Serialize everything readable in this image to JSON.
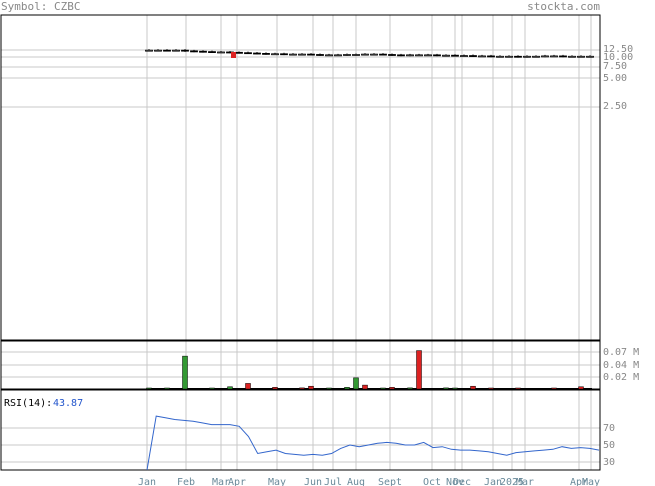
{
  "header": {
    "symbol": "Symbol: CZBC",
    "site": "stockta.com"
  },
  "chart_data": {
    "type": "candlestick",
    "price": {
      "y_ticks": [
        "12.50",
        "10.00",
        "7.50",
        "5.00",
        "2.50"
      ],
      "close": [
        11.9,
        11.9,
        11.8,
        11.9,
        11.7,
        11.6,
        11.5,
        11.4,
        11.4,
        11.3,
        11.2,
        11.1,
        11.0,
        10.9,
        10.9,
        10.8,
        10.8,
        10.8,
        10.7,
        10.6,
        10.6,
        10.6,
        10.7,
        10.7,
        10.8,
        10.8,
        10.7,
        10.6,
        10.5,
        10.6,
        10.6,
        10.6,
        10.5,
        10.5,
        10.4,
        10.4,
        10.3,
        10.3,
        10.2,
        10.2,
        10.2,
        10.1,
        10.2,
        10.2,
        10.3,
        10.3,
        10.2,
        10.2,
        10.2,
        10.2
      ]
    },
    "volume": {
      "y_ticks": [
        "0.07 M",
        "0.04 M",
        "0.02 M"
      ],
      "bars": [
        {
          "i": 0,
          "v": 0.001,
          "c": "green"
        },
        {
          "i": 2,
          "v": 0.001,
          "c": "green"
        },
        {
          "i": 4,
          "v": 0.059,
          "c": "green"
        },
        {
          "i": 7,
          "v": 0.001,
          "c": "green"
        },
        {
          "i": 9,
          "v": 0.004,
          "c": "green"
        },
        {
          "i": 11,
          "v": 0.01,
          "c": "red"
        },
        {
          "i": 14,
          "v": 0.003,
          "c": "red"
        },
        {
          "i": 17,
          "v": 0.002,
          "c": "red"
        },
        {
          "i": 18,
          "v": 0.005,
          "c": "red"
        },
        {
          "i": 20,
          "v": 0.001,
          "c": "green"
        },
        {
          "i": 22,
          "v": 0.003,
          "c": "green"
        },
        {
          "i": 23,
          "v": 0.02,
          "c": "green"
        },
        {
          "i": 24,
          "v": 0.007,
          "c": "red"
        },
        {
          "i": 26,
          "v": 0.001,
          "c": "green"
        },
        {
          "i": 27,
          "v": 0.003,
          "c": "red"
        },
        {
          "i": 29,
          "v": 0.002,
          "c": "green"
        },
        {
          "i": 30,
          "v": 0.069,
          "c": "red"
        },
        {
          "i": 33,
          "v": 0.002,
          "c": "green"
        },
        {
          "i": 34,
          "v": 0.001,
          "c": "green"
        },
        {
          "i": 36,
          "v": 0.005,
          "c": "red"
        },
        {
          "i": 38,
          "v": 0.001,
          "c": "red"
        },
        {
          "i": 41,
          "v": 0.001,
          "c": "red"
        },
        {
          "i": 45,
          "v": 0.001,
          "c": "red"
        },
        {
          "i": 48,
          "v": 0.004,
          "c": "red"
        }
      ]
    },
    "rsi": {
      "label": "RSI(14):",
      "value": "43.87",
      "y_ticks": [
        "70",
        "50",
        "30"
      ],
      "values": [
        0,
        84,
        82,
        80,
        79,
        78,
        76,
        74,
        74,
        74,
        72,
        60,
        40,
        42,
        44,
        40,
        39,
        38,
        39,
        38,
        40,
        46,
        50,
        48,
        50,
        52,
        53,
        52,
        50,
        50,
        53,
        47,
        48,
        45,
        44,
        44,
        43,
        42,
        40,
        38,
        41,
        42,
        43,
        44,
        45,
        48,
        46,
        47,
        46,
        44
      ]
    },
    "x_labels": [
      "Jan",
      "Feb",
      "Mar",
      "Apr",
      "May",
      "Jun",
      "Jul",
      "Aug",
      "Sept",
      "Oct",
      "Nov",
      "Dec",
      "Jan",
      "2025",
      "Mar",
      "Apr",
      "May"
    ],
    "colors": {
      "up": "#339933",
      "down": "#dd2222",
      "rsi_line": "#3366cc",
      "rsi_value": "#2255cc",
      "grid": "#c8c8c8"
    }
  }
}
